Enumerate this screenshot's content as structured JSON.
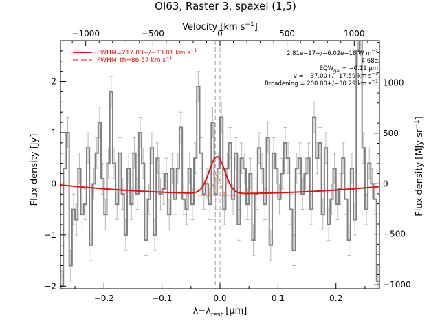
{
  "chart_data": {
    "type": "line",
    "title": "OI63, Raster 3, spaxel (1,5)",
    "xlabel_main": "λ−λ",
    "xlabel_sub": "rest",
    "xlabel_unit": "[μm]",
    "ylabel_left": "Flux density [Jy]",
    "ylabel_right": "Flux density [MJy sr",
    "ylabel_right_sup": "−1",
    "ylabel_right_end": "]",
    "top_axis_label_main": "Velocity [km s",
    "top_axis_label_sup": "−1",
    "top_axis_label_end": "]",
    "xlim": [
      -0.275,
      0.275
    ],
    "ylim": [
      -2.05,
      2.8
    ],
    "right_ylim": [
      -1040,
      1418
    ],
    "x_ticks": [
      -0.2,
      -0.1,
      0.0,
      0.1,
      0.2
    ],
    "x_tick_labels": [
      "−0.2",
      "−0.1",
      "0.0",
      "0.1",
      "0.2"
    ],
    "y_ticks": [
      -2,
      -1,
      0,
      1,
      2
    ],
    "y_tick_labels": [
      "−2",
      "−1",
      "0",
      "1",
      "2"
    ],
    "right_ticks": [
      -1000,
      -500,
      0,
      500,
      1000
    ],
    "right_tick_labels": [
      "−1000",
      "−500",
      "0",
      "500",
      "1000"
    ],
    "top_ticks_um": [
      -0.2315,
      -0.1157,
      0.0,
      0.1157,
      0.2315
    ],
    "top_tick_labels": [
      "−1000",
      "−500",
      "0",
      "500",
      "1000"
    ],
    "vertical_lines_solid": [
      -0.093,
      0.093
    ],
    "vertical_lines_dashed": [
      -0.008,
      0.0
    ],
    "legend": [
      {
        "label": "FWHM=217.83+/−33.01 km s",
        "sup": "−1",
        "style": "solid",
        "color": "#e8100f"
      },
      {
        "label": "FWHM_th=86.57 km s",
        "sup": "−1",
        "style": "dashed",
        "color": "#e8100f"
      }
    ],
    "annotations": [
      "2.81e−17+/−6.02e−18 W m",
      "−2",
      "4.68σ",
      "EQW",
      "gal",
      " = −0.11 μm",
      "v = −37.00+/−17.59 km s",
      "−1",
      "Broadening = 200.00+/−30.29 km s",
      "−1"
    ],
    "colors": {
      "data": "#808080",
      "fit": "#e8100f",
      "thermal": "#e8760f",
      "guide": "#a0a0a0"
    },
    "series": [
      {
        "name": "",
        "kind": "spectrum",
        "x": [
          -0.275,
          -0.27,
          -0.265,
          -0.26,
          -0.255,
          -0.25,
          -0.245,
          -0.24,
          -0.235,
          -0.23,
          -0.225,
          -0.22,
          -0.215,
          -0.21,
          -0.205,
          -0.2,
          -0.195,
          -0.19,
          -0.185,
          -0.18,
          -0.175,
          -0.17,
          -0.165,
          -0.16,
          -0.155,
          -0.15,
          -0.145,
          -0.14,
          -0.135,
          -0.13,
          -0.125,
          -0.12,
          -0.115,
          -0.11,
          -0.105,
          -0.1,
          -0.095,
          -0.09,
          -0.085,
          -0.08,
          -0.075,
          -0.07,
          -0.065,
          -0.06,
          -0.055,
          -0.05,
          -0.045,
          -0.04,
          -0.035,
          -0.03,
          -0.025,
          -0.02,
          -0.015,
          -0.01,
          -0.005,
          0.0,
          0.005,
          0.01,
          0.015,
          0.02,
          0.025,
          0.03,
          0.035,
          0.04,
          0.045,
          0.05,
          0.055,
          0.06,
          0.065,
          0.07,
          0.075,
          0.08,
          0.085,
          0.09,
          0.095,
          0.1,
          0.105,
          0.11,
          0.115,
          0.12,
          0.125,
          0.13,
          0.135,
          0.14,
          0.145,
          0.15,
          0.155,
          0.16,
          0.165,
          0.17,
          0.175,
          0.18,
          0.185,
          0.19,
          0.195,
          0.2,
          0.205,
          0.21,
          0.215,
          0.22,
          0.225,
          0.23,
          0.235,
          0.24,
          0.245,
          0.25,
          0.255,
          0.26,
          0.265,
          0.27
        ],
        "y": [
          -2.0,
          0.3,
          1.0,
          -1.6,
          -0.5,
          -0.7,
          0.3,
          -0.6,
          -0.4,
          0.7,
          -1.2,
          0.0,
          0.6,
          1.2,
          0.1,
          -0.6,
          0.4,
          1.8,
          0.4,
          -0.4,
          0.6,
          -0.2,
          -1.0,
          0.3,
          -0.4,
          0.6,
          -0.2,
          1.0,
          0.4,
          -1.1,
          -0.3,
          0.7,
          -1.0,
          0.5,
          -0.2,
          -0.1,
          0.2,
          -0.6,
          0.3,
          -0.3,
          0.3,
          1.1,
          -0.3,
          -0.5,
          0.3,
          -0.4,
          0.5,
          1.9,
          0.6,
          -0.2,
          0.0,
          -0.4,
          1.2,
          -0.2,
          0.3,
          1.3,
          -0.5,
          0.3,
          0.8,
          -0.3,
          0.6,
          -0.8,
          0.5,
          0.3,
          -0.4,
          0.2,
          -1.1,
          -0.2,
          0.7,
          0.3,
          -0.4,
          0.9,
          -1.2,
          0.6,
          0.3,
          -0.3,
          0.2,
          0.8,
          0.5,
          -0.5,
          -1.3,
          0.3,
          0.5,
          -0.2,
          0.2,
          0.5,
          -0.5,
          1.3,
          0.5,
          0.8,
          -0.6,
          0.7,
          -0.8,
          -0.3,
          0.3,
          -0.4,
          -0.1,
          0.5,
          -0.3,
          -1.1,
          0.3,
          -0.7,
          2.6,
          2.8,
          0.7,
          -0.5,
          0.4,
          0.0,
          -0.3,
          -1.9
        ],
        "err": 0.3
      },
      {
        "name": "",
        "kind": "fit",
        "baseline_min": -0.19,
        "baseline_x0": 0.015,
        "baseline_c": 12.5,
        "peak_x": -0.005,
        "peak_amp": 0.72,
        "peak_sigma": 0.0135
      },
      {
        "name": "",
        "kind": "thermal",
        "center_x": -0.005,
        "amp": 0.4,
        "sigma": 0.0058,
        "base": -0.22,
        "xrange": [
          -0.038,
          0.028
        ]
      }
    ]
  }
}
